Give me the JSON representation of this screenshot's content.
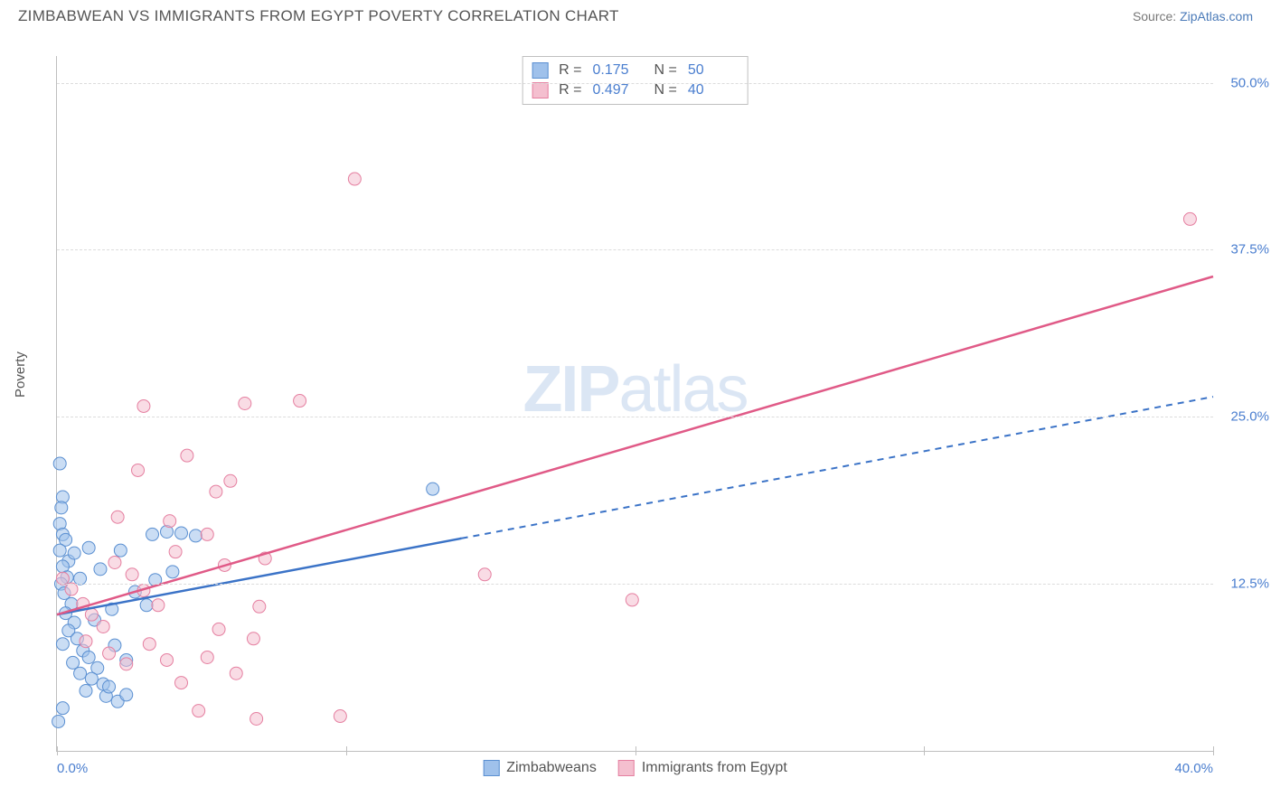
{
  "header": {
    "title": "ZIMBABWEAN VS IMMIGRANTS FROM EGYPT POVERTY CORRELATION CHART",
    "source_prefix": "Source: ",
    "source_link": "ZipAtlas.com"
  },
  "chart": {
    "type": "scatter",
    "ylabel": "Poverty",
    "watermark_a": "ZIP",
    "watermark_b": "atlas",
    "background_color": "#ffffff",
    "grid_color": "#dcdcdc",
    "axis_color": "#bfbfbf",
    "tick_label_color": "#4a7ecf",
    "xlim": [
      0,
      40
    ],
    "ylim": [
      0,
      52
    ],
    "ytick_positions": [
      12.5,
      25.0,
      37.5,
      50.0
    ],
    "ytick_labels": [
      "12.5%",
      "25.0%",
      "37.5%",
      "50.0%"
    ],
    "xtick_positions": [
      0,
      10,
      20,
      30,
      40
    ],
    "xtick_labels": [
      "0.0%",
      "",
      "",
      "",
      "40.0%"
    ],
    "series": [
      {
        "name": "Zimbabweans",
        "marker_color": "#9fc1eb",
        "marker_stroke": "#5a8fd1",
        "line_color": "#3b73c7",
        "line_dash_color": "#3b73c7",
        "marker_size": 7,
        "line_width": 2,
        "R": "0.175",
        "N": "50",
        "trend": {
          "x1": 0,
          "y1": 10.2,
          "x2": 40,
          "y2": 26.5,
          "solid_until_x": 14
        },
        "points": [
          [
            0.1,
            21.5
          ],
          [
            0.2,
            19.0
          ],
          [
            0.15,
            18.2
          ],
          [
            0.1,
            17.0
          ],
          [
            0.2,
            16.2
          ],
          [
            0.3,
            15.8
          ],
          [
            0.1,
            15.0
          ],
          [
            0.4,
            14.2
          ],
          [
            0.2,
            13.8
          ],
          [
            0.35,
            13.0
          ],
          [
            0.14,
            12.5
          ],
          [
            0.25,
            11.8
          ],
          [
            0.5,
            11.0
          ],
          [
            0.3,
            10.3
          ],
          [
            0.6,
            9.6
          ],
          [
            0.4,
            9.0
          ],
          [
            0.7,
            8.4
          ],
          [
            0.2,
            8.0
          ],
          [
            0.9,
            7.5
          ],
          [
            1.1,
            7.0
          ],
          [
            0.55,
            6.6
          ],
          [
            1.4,
            6.2
          ],
          [
            0.8,
            5.8
          ],
          [
            1.2,
            5.4
          ],
          [
            1.6,
            5.0
          ],
          [
            1.0,
            4.5
          ],
          [
            1.7,
            4.1
          ],
          [
            2.1,
            3.7
          ],
          [
            0.2,
            3.2
          ],
          [
            1.3,
            9.8
          ],
          [
            1.9,
            10.6
          ],
          [
            2.4,
            6.8
          ],
          [
            2.0,
            7.9
          ],
          [
            0.8,
            12.9
          ],
          [
            1.5,
            13.6
          ],
          [
            1.1,
            15.2
          ],
          [
            2.2,
            15.0
          ],
          [
            2.7,
            11.9
          ],
          [
            3.3,
            16.2
          ],
          [
            3.8,
            16.4
          ],
          [
            3.1,
            10.9
          ],
          [
            3.4,
            12.8
          ],
          [
            4.0,
            13.4
          ],
          [
            4.3,
            16.3
          ],
          [
            4.8,
            16.1
          ],
          [
            0.05,
            2.2
          ],
          [
            13.0,
            19.6
          ],
          [
            1.8,
            4.8
          ],
          [
            2.4,
            4.2
          ],
          [
            0.6,
            14.8
          ]
        ]
      },
      {
        "name": "Immigrants from Egypt",
        "marker_color": "#f4bfcf",
        "marker_stroke": "#e57fa0",
        "line_color": "#e05a87",
        "marker_size": 7,
        "line_width": 2,
        "R": "0.497",
        "N": "40",
        "trend": {
          "x1": 0,
          "y1": 10.2,
          "x2": 40,
          "y2": 35.5,
          "solid_until_x": 40
        },
        "points": [
          [
            0.2,
            12.9
          ],
          [
            0.5,
            12.1
          ],
          [
            0.9,
            11.0
          ],
          [
            1.2,
            10.2
          ],
          [
            1.6,
            9.3
          ],
          [
            1.0,
            8.2
          ],
          [
            1.8,
            7.3
          ],
          [
            2.4,
            6.5
          ],
          [
            2.0,
            14.1
          ],
          [
            2.6,
            13.2
          ],
          [
            3.0,
            12.0
          ],
          [
            3.5,
            10.9
          ],
          [
            3.2,
            8.0
          ],
          [
            3.8,
            6.8
          ],
          [
            4.3,
            5.1
          ],
          [
            4.9,
            3.0
          ],
          [
            5.2,
            7.0
          ],
          [
            5.6,
            9.1
          ],
          [
            5.8,
            13.9
          ],
          [
            6.2,
            5.8
          ],
          [
            6.8,
            8.4
          ],
          [
            7.2,
            14.4
          ],
          [
            6.0,
            20.2
          ],
          [
            6.5,
            26.0
          ],
          [
            6.9,
            2.4
          ],
          [
            8.4,
            26.2
          ],
          [
            3.0,
            25.8
          ],
          [
            4.5,
            22.1
          ],
          [
            2.1,
            17.5
          ],
          [
            3.9,
            17.2
          ],
          [
            5.2,
            16.2
          ],
          [
            14.8,
            13.2
          ],
          [
            19.9,
            11.3
          ],
          [
            10.3,
            42.8
          ],
          [
            39.2,
            39.8
          ],
          [
            5.5,
            19.4
          ],
          [
            7.0,
            10.8
          ],
          [
            4.1,
            14.9
          ],
          [
            9.8,
            2.6
          ],
          [
            2.8,
            21.0
          ]
        ]
      }
    ],
    "stats_legend": {
      "R_label": "R =",
      "N_label": "N ="
    },
    "bottom_legend_labels": [
      "Zimbabweans",
      "Immigrants from Egypt"
    ]
  }
}
